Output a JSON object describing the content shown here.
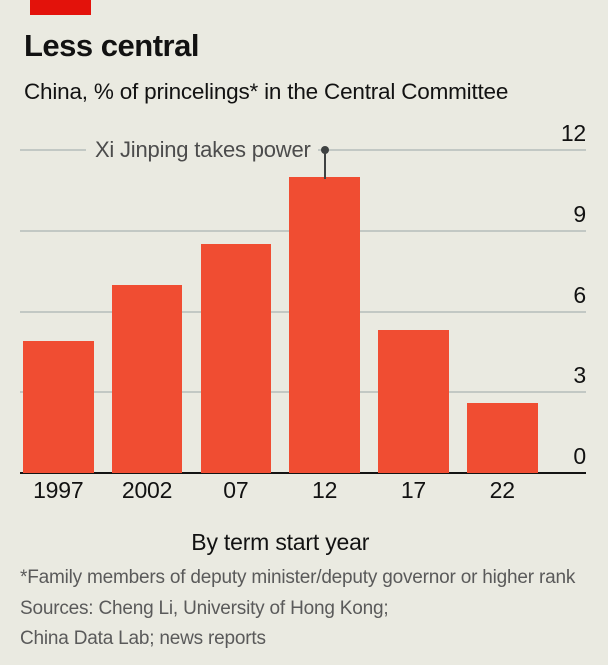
{
  "header": {
    "title": "Less central",
    "subtitle": "China, % of princelings* in the Central Committee"
  },
  "chart_data": {
    "type": "bar",
    "title": "Less central",
    "subtitle": "China, % of princelings* in the Central Committee",
    "categories": [
      "1997",
      "2002",
      "07",
      "12",
      "17",
      "22"
    ],
    "values": [
      4.9,
      7.0,
      8.5,
      11.0,
      5.3,
      2.6
    ],
    "xlabel": "By term start year",
    "ylabel": "",
    "ylim": [
      0,
      12
    ],
    "yticks": [
      0,
      3,
      6,
      9,
      12
    ],
    "ytick_side": "right",
    "grid": "horizontal",
    "legend": "none",
    "annotation": {
      "text": "Xi Jinping takes power",
      "category": "12",
      "marker_value": 12
    }
  },
  "footer": {
    "footnote": "*Family members of deputy minister/deputy governor or higher rank",
    "sources_line1": "Sources: Cheng Li, University of Hong Kong;",
    "sources_line2": "China Data Lab; news reports"
  },
  "colors": {
    "background": "#eaeae1",
    "brand_red": "#e3120b",
    "bar": "#f04d32",
    "grid": "#c2c8c4",
    "axis": "#141414",
    "text": "#121212",
    "annotation_text": "#4c4c4c",
    "annotation_marker": "#3f4242",
    "footnote_text": "#5a5a5a"
  }
}
